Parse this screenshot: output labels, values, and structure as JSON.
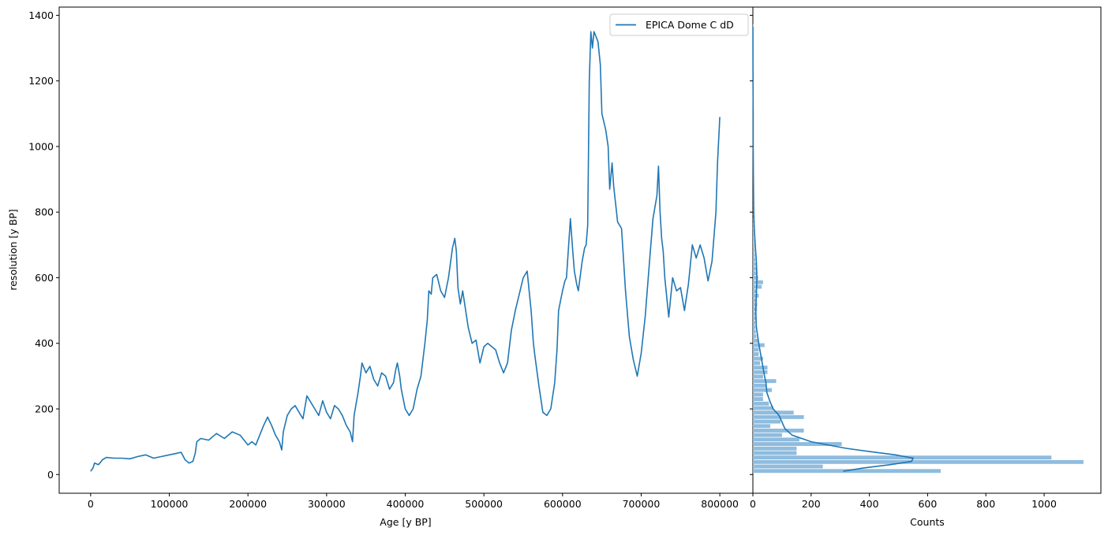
{
  "chart_data": [
    {
      "type": "line",
      "xlabel": "Age [y BP]",
      "ylabel": "resolution [y BP]",
      "xlim": [
        -40000,
        842000
      ],
      "ylim": [
        -57,
        1425
      ],
      "xticks": [
        0,
        100000,
        200000,
        300000,
        400000,
        500000,
        600000,
        700000,
        800000
      ],
      "xtick_labels": [
        "0",
        "100000",
        "200000",
        "300000",
        "400000",
        "500000",
        "600000",
        "700000",
        "800000"
      ],
      "yticks": [
        0,
        200,
        400,
        600,
        800,
        1000,
        1200,
        1400
      ],
      "ytick_labels": [
        "0",
        "200",
        "400",
        "600",
        "800",
        "1000",
        "1200",
        "1400"
      ],
      "legend": "top-right",
      "grid": false,
      "series": [
        {
          "name": "EPICA Dome C dD",
          "color": "#1f77b4",
          "x": [
            0,
            3000,
            5000,
            10000,
            15000,
            20000,
            30000,
            40000,
            50000,
            60000,
            70000,
            80000,
            90000,
            100000,
            110000,
            115000,
            120000,
            125000,
            130000,
            133000,
            135000,
            140000,
            150000,
            160000,
            170000,
            180000,
            190000,
            200000,
            205000,
            210000,
            220000,
            225000,
            230000,
            235000,
            240000,
            243000,
            245000,
            250000,
            255000,
            260000,
            270000,
            275000,
            280000,
            285000,
            290000,
            295000,
            300000,
            305000,
            310000,
            315000,
            320000,
            325000,
            330000,
            333000,
            335000,
            340000,
            343000,
            345000,
            350000,
            355000,
            360000,
            365000,
            370000,
            375000,
            380000,
            385000,
            388000,
            390000,
            393000,
            395000,
            400000,
            405000,
            410000,
            415000,
            420000,
            425000,
            428000,
            430000,
            433000,
            435000,
            440000,
            445000,
            450000,
            455000,
            460000,
            463000,
            465000,
            467000,
            470000,
            473000,
            475000,
            480000,
            485000,
            490000,
            495000,
            500000,
            505000,
            510000,
            515000,
            520000,
            525000,
            530000,
            535000,
            540000,
            545000,
            550000,
            555000,
            560000,
            563000,
            565000,
            570000,
            575000,
            580000,
            585000,
            590000,
            593000,
            595000,
            600000,
            603000,
            605000,
            610000,
            613000,
            615000,
            618000,
            620000,
            625000,
            628000,
            630000,
            632000,
            634000,
            636000,
            638000,
            640000,
            645000,
            648000,
            650000,
            655000,
            658000,
            660000,
            663000,
            665000,
            670000,
            675000,
            680000,
            685000,
            690000,
            695000,
            700000,
            705000,
            710000,
            715000,
            720000,
            722000,
            724000,
            726000,
            728000,
            730000,
            735000,
            740000,
            745000,
            750000,
            755000,
            760000,
            765000,
            770000,
            775000,
            780000,
            785000,
            790000,
            795000,
            797000,
            800000
          ],
          "y": [
            10,
            20,
            35,
            30,
            45,
            52,
            50,
            50,
            48,
            55,
            60,
            50,
            55,
            60,
            65,
            68,
            45,
            35,
            40,
            65,
            100,
            110,
            105,
            125,
            110,
            130,
            120,
            90,
            100,
            90,
            150,
            175,
            150,
            120,
            100,
            75,
            130,
            180,
            200,
            210,
            170,
            240,
            220,
            200,
            180,
            225,
            190,
            170,
            210,
            200,
            180,
            150,
            130,
            100,
            180,
            250,
            300,
            340,
            310,
            330,
            290,
            270,
            310,
            300,
            260,
            280,
            320,
            340,
            300,
            260,
            200,
            180,
            200,
            260,
            300,
            400,
            470,
            560,
            550,
            600,
            610,
            560,
            540,
            600,
            690,
            720,
            680,
            570,
            520,
            560,
            530,
            450,
            400,
            410,
            340,
            390,
            400,
            390,
            380,
            340,
            310,
            340,
            440,
            500,
            550,
            600,
            620,
            500,
            400,
            360,
            270,
            190,
            180,
            200,
            280,
            380,
            500,
            560,
            590,
            600,
            780,
            680,
            620,
            580,
            560,
            650,
            690,
            700,
            760,
            1200,
            1350,
            1300,
            1350,
            1320,
            1250,
            1100,
            1050,
            1000,
            870,
            950,
            880,
            770,
            750,
            560,
            420,
            350,
            300,
            370,
            480,
            630,
            780,
            850,
            940,
            800,
            720,
            680,
            600,
            480,
            600,
            560,
            570,
            500,
            580,
            700,
            660,
            700,
            660,
            590,
            650,
            800,
            950,
            1090
          ]
        }
      ]
    },
    {
      "type": "bar",
      "orientation": "horizontal",
      "xlabel": "Counts",
      "ylabel": "",
      "xlim": [
        0,
        1195
      ],
      "ylim": [
        -57,
        1425
      ],
      "shared_y_with": "line chart",
      "xticks": [
        0,
        200,
        400,
        600,
        800,
        1000
      ],
      "xtick_labels": [
        "0",
        "200",
        "400",
        "600",
        "800",
        "1000"
      ],
      "bar_color": "#8fbcdf",
      "kde_color": "#1f77b4",
      "bin_edges": [
        3,
        16.7,
        30.4,
        44.1,
        57.8,
        71.5,
        85.2,
        98.9,
        112.6,
        126.3,
        140,
        153.7,
        167.4,
        181.1,
        194.8,
        208.5,
        222.2,
        235.9,
        249.6,
        263.3,
        277,
        290.7,
        304.4,
        318.1,
        331.8,
        345.5,
        359.2,
        372.9,
        386.6,
        400.3,
        414
      ],
      "counts": [
        645,
        240,
        1135,
        1025,
        150,
        150,
        305,
        160,
        100,
        175,
        60,
        95,
        175,
        140,
        70,
        55,
        35,
        35,
        65,
        45,
        80,
        35,
        50,
        50,
        25,
        35,
        20,
        20,
        40,
        20
      ],
      "bins_above": {
        "start": 414,
        "width": 13.7,
        "count_pattern": [
          12,
          10,
          9,
          8,
          10,
          12,
          14,
          15,
          12,
          20,
          15,
          30,
          35,
          18,
          15,
          12,
          10,
          8,
          7,
          6,
          5,
          4,
          3,
          3,
          2,
          2,
          2,
          1,
          1,
          1
        ],
        "tail_to": 1365
      },
      "kde": {
        "y": [
          10,
          20,
          30,
          40,
          50,
          60,
          70,
          80,
          100,
          120,
          140,
          160,
          180,
          200,
          220,
          250,
          280,
          300,
          350,
          400,
          450,
          500,
          550,
          600,
          650,
          700,
          750,
          800,
          900,
          1000,
          1100,
          1200,
          1300,
          1365
        ],
        "counts": [
          310,
          380,
          470,
          545,
          550,
          490,
          400,
          320,
          200,
          135,
          110,
          100,
          90,
          70,
          60,
          48,
          45,
          40,
          30,
          20,
          12,
          10,
          12,
          14,
          12,
          8,
          5,
          3,
          2,
          1,
          1,
          0.5,
          0.3,
          0.2
        ]
      }
    }
  ]
}
